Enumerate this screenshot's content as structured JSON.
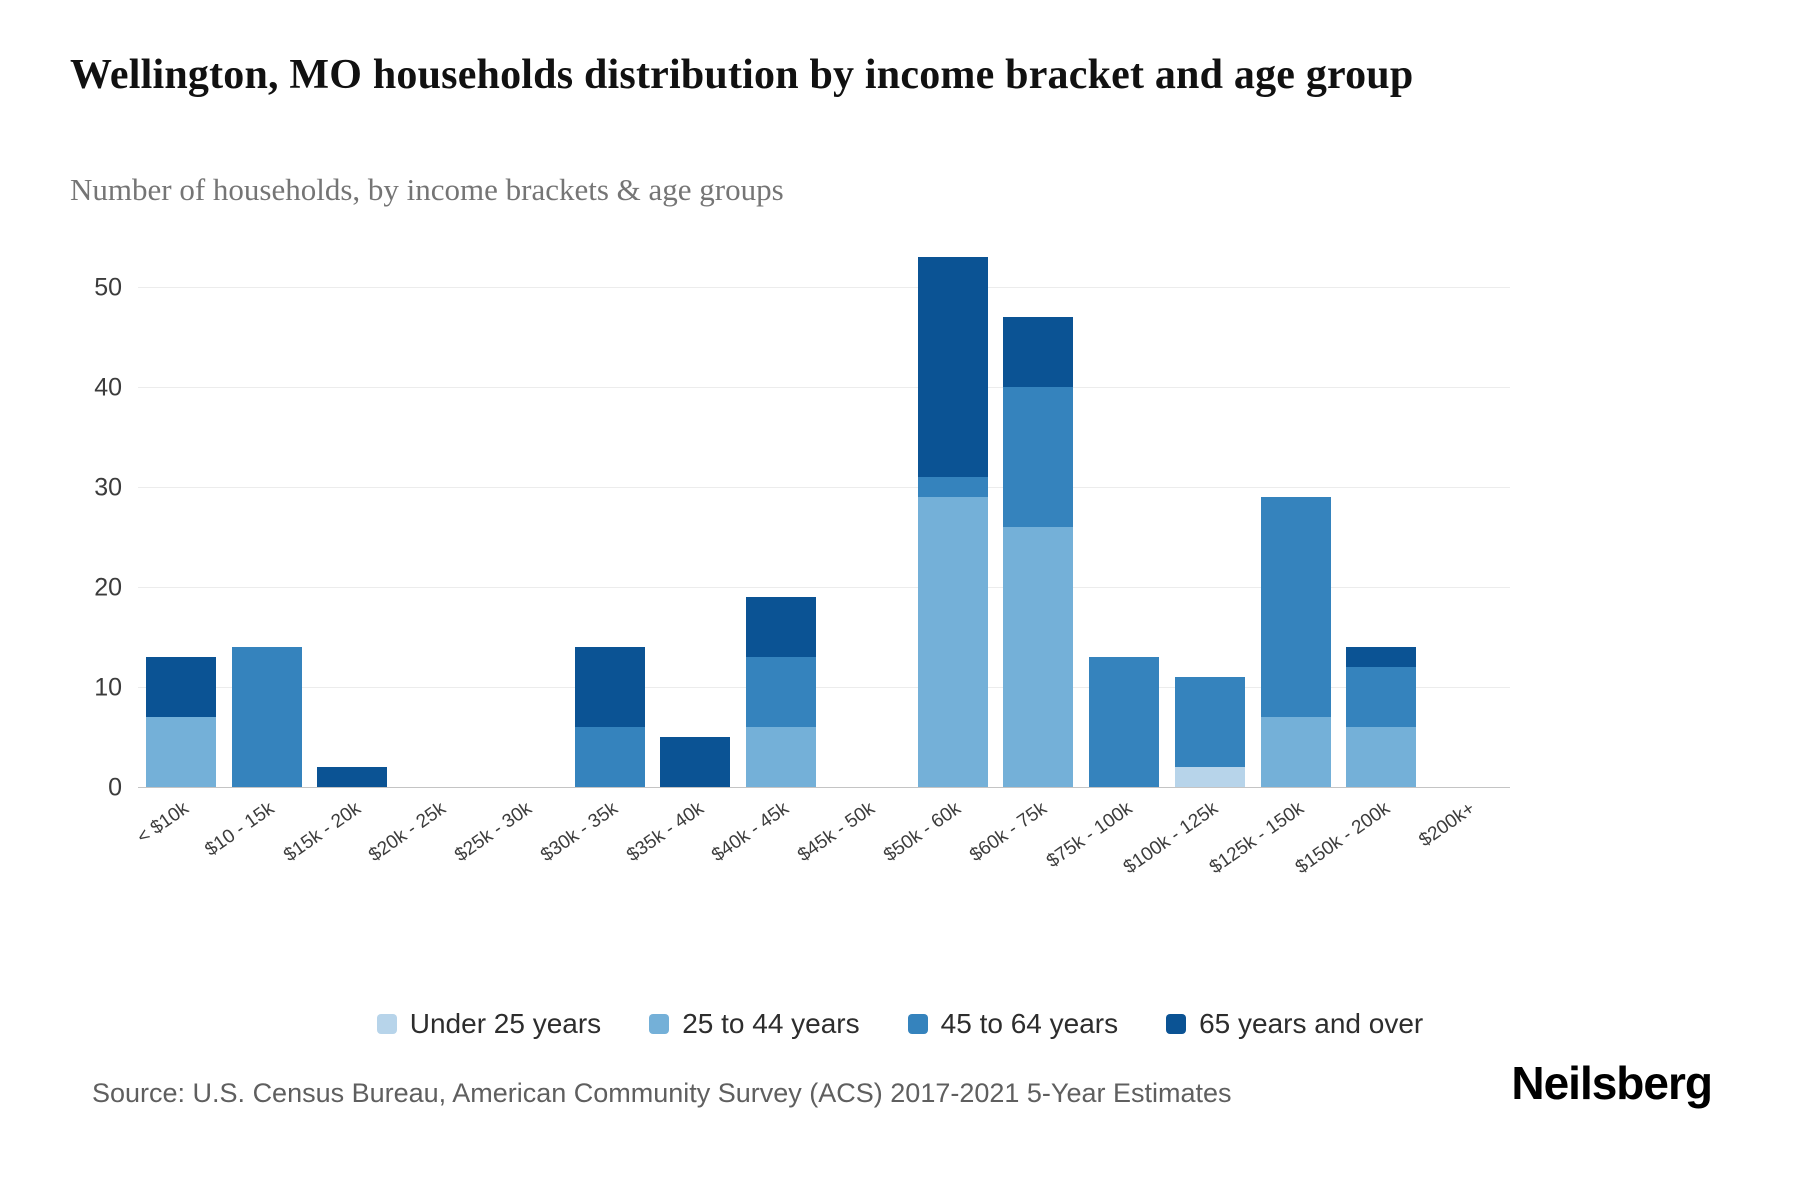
{
  "page": {
    "title": "Wellington, MO households distribution by income bracket and age group",
    "subtitle": "Number of households, by income brackets & age groups",
    "source": "Source: U.S. Census Bureau, American Community Survey (ACS) 2017-2021 5-Year Estimates",
    "brand": "Neilsberg"
  },
  "chart_data": {
    "type": "bar",
    "stacked": true,
    "title": "Wellington, MO households distribution by income bracket and age group",
    "subtitle": "Number of households, by income brackets & age groups",
    "xlabel": "",
    "ylabel": "Number of households",
    "categories": [
      "< $10k",
      "$10 - 15k",
      "$15k - 20k",
      "$20k - 25k",
      "$25k - 30k",
      "$30k - 35k",
      "$35k - 40k",
      "$40k - 45k",
      "$45k - 50k",
      "$50k - 60k",
      "$60k - 75k",
      "$75k - 100k",
      "$100k - 125k",
      "$125k - 150k",
      "$150k - 200k",
      "$200k+"
    ],
    "series": [
      {
        "name": "Under 25 years",
        "color": "#b7d4ea",
        "values": [
          0,
          0,
          0,
          0,
          0,
          0,
          0,
          0,
          0,
          0,
          0,
          0,
          2,
          0,
          0,
          0
        ]
      },
      {
        "name": "25 to 44 years",
        "color": "#74b0d8",
        "values": [
          7,
          0,
          0,
          0,
          0,
          0,
          0,
          6,
          0,
          29,
          26,
          0,
          0,
          7,
          6,
          0
        ]
      },
      {
        "name": "45 to 64 years",
        "color": "#3583bd",
        "values": [
          0,
          14,
          0,
          0,
          0,
          6,
          0,
          7,
          0,
          2,
          14,
          13,
          9,
          22,
          6,
          0
        ]
      },
      {
        "name": "65 years and over",
        "color": "#0b5394",
        "values": [
          6,
          0,
          2,
          0,
          0,
          8,
          5,
          6,
          0,
          22,
          7,
          0,
          0,
          0,
          2,
          0
        ]
      }
    ],
    "totals": [
      13,
      14,
      2,
      0,
      0,
      14,
      5,
      19,
      0,
      53,
      47,
      13,
      11,
      29,
      14,
      0
    ],
    "yticks": [
      0,
      10,
      20,
      30,
      40,
      50
    ],
    "ylim": [
      0,
      54
    ],
    "grid": "horizontal",
    "legend_position": "bottom"
  }
}
